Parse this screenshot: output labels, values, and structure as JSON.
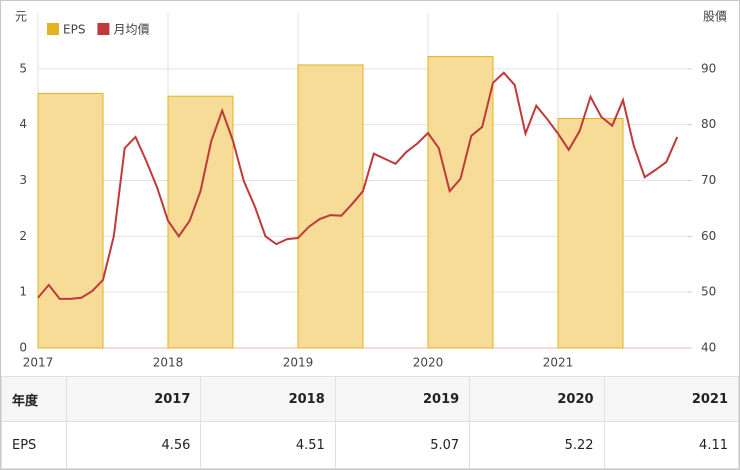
{
  "chart_data": {
    "type": "bar-line",
    "y_label": "元",
    "y2_label": "股價",
    "xlim": [
      2017,
      2022
    ],
    "xticks": [
      2017,
      2018,
      2019,
      2020,
      2021
    ],
    "ylim": [
      0,
      6
    ],
    "yticks": [
      0,
      1,
      2,
      3,
      4,
      5
    ],
    "y2lim": [
      40,
      100
    ],
    "y2ticks": [
      40,
      50,
      60,
      70,
      80,
      90
    ],
    "grid": true,
    "legend": "top-left",
    "series": [
      {
        "name": "EPS",
        "type": "bar",
        "color": "#e3b321",
        "x": [
          2017,
          2018,
          2019,
          2020,
          2021
        ],
        "values": [
          4.56,
          4.51,
          5.07,
          5.22,
          4.11
        ]
      },
      {
        "name": "月均價",
        "type": "line",
        "axis": "y2",
        "color": "#c0393b",
        "x": [
          2017,
          2017.083,
          2017.167,
          2017.25,
          2017.333,
          2017.417,
          2017.5,
          2017.583,
          2017.667,
          2017.75,
          2017.833,
          2017.917,
          2018,
          2018.083,
          2018.167,
          2018.25,
          2018.333,
          2018.417,
          2018.5,
          2018.583,
          2018.667,
          2018.75,
          2018.833,
          2018.917,
          2019,
          2019.083,
          2019.167,
          2019.25,
          2019.333,
          2019.417,
          2019.5,
          2019.583,
          2019.667,
          2019.75,
          2019.833,
          2019.917,
          2020,
          2020.083,
          2020.167,
          2020.25,
          2020.333,
          2020.417,
          2020.5,
          2020.583,
          2020.667,
          2020.75,
          2020.833,
          2020.917,
          2021,
          2021.083,
          2021.167,
          2021.25,
          2021.333,
          2021.417,
          2021.5,
          2021.583,
          2021.667,
          2021.75,
          2021.833,
          2021.917
        ],
        "values": [
          49,
          51.3,
          48.8,
          48.8,
          49,
          50.2,
          52.2,
          60,
          75.8,
          77.8,
          73.5,
          68.7,
          62.8,
          60,
          62.8,
          68.1,
          77.1,
          82.5,
          77.1,
          69.9,
          65.4,
          60,
          58.6,
          59.5,
          59.7,
          61.7,
          63.1,
          63.8,
          63.7,
          65.8,
          68.1,
          74.8,
          73.9,
          73,
          75.1,
          76.6,
          78.5,
          75.8,
          68.1,
          70.3,
          78,
          79.6,
          87.5,
          89.3,
          87.1,
          78.4,
          83.4,
          81,
          78.4,
          75.5,
          78.9,
          85,
          81.4,
          79.8,
          84.4,
          76.2,
          70.6,
          71.9,
          73.3,
          77.8
        ]
      }
    ]
  },
  "table": {
    "header": [
      "年度",
      "2017",
      "2018",
      "2019",
      "2020",
      "2021"
    ],
    "rows": [
      [
        "EPS",
        "4.56",
        "4.51",
        "5.07",
        "5.22",
        "4.11"
      ]
    ]
  }
}
